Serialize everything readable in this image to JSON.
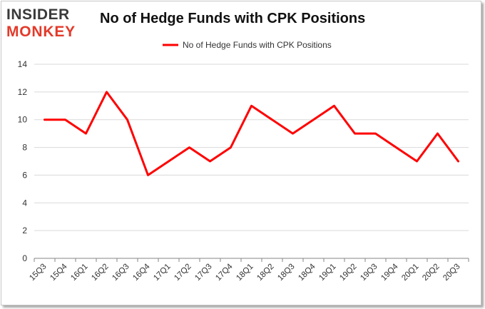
{
  "logo": {
    "line1": "INSIDER",
    "line2": "MONKEY"
  },
  "colors": {
    "series": "#ff0000",
    "grid": "#d9d9d9",
    "axis": "#868686",
    "logo_dark": "#3a3a3a",
    "logo_red": "#e33a2a"
  },
  "chart_data": {
    "type": "line",
    "title": "No of Hedge Funds with CPK Positions",
    "xlabel": "",
    "ylabel": "",
    "categories": [
      "15Q3",
      "15Q4",
      "16Q1",
      "16Q2",
      "16Q3",
      "16Q4",
      "17Q1",
      "17Q2",
      "17Q3",
      "17Q4",
      "18Q1",
      "18Q2",
      "18Q3",
      "18Q4",
      "19Q1",
      "19Q2",
      "19Q3",
      "19Q4",
      "20Q1",
      "20Q2",
      "20Q3"
    ],
    "series": [
      {
        "name": "No of Hedge Funds with CPK Positions",
        "values": [
          10,
          10,
          9,
          12,
          10,
          6,
          7,
          8,
          7,
          8,
          11,
          10,
          9,
          10,
          11,
          9,
          9,
          8,
          7,
          9,
          7
        ]
      }
    ],
    "ylim": [
      0,
      14
    ],
    "yticks": [
      0,
      2,
      4,
      6,
      8,
      10,
      12,
      14
    ],
    "grid": true,
    "legend": "top-center"
  }
}
